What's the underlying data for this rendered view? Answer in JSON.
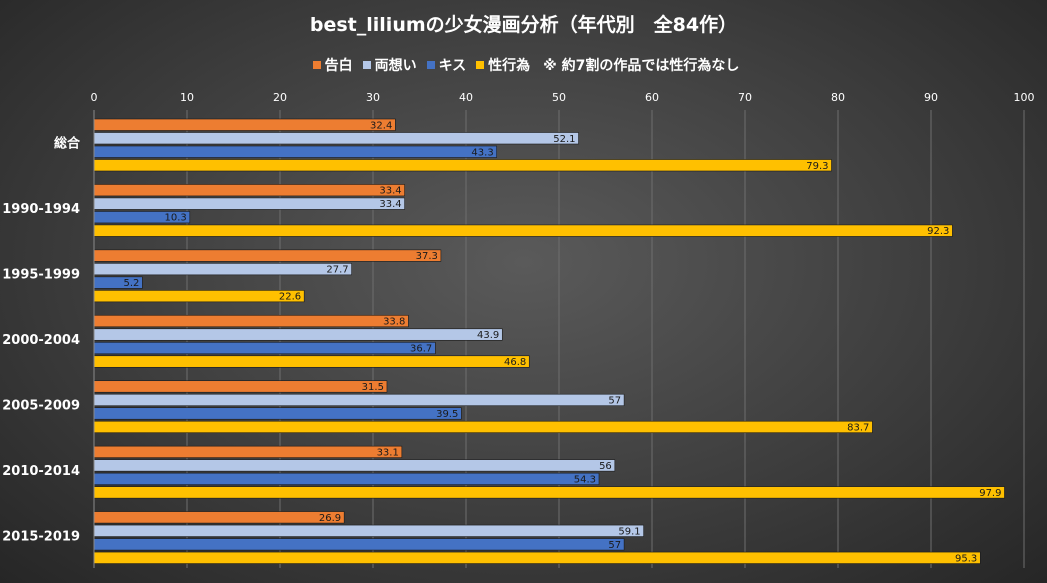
{
  "chart_data": {
    "type": "bar",
    "orientation": "horizontal",
    "title": "best_liliumの少女漫画分析（年代別　全84作）",
    "note": "※ 約7割の作品では性行為なし",
    "categories": [
      "総合",
      "1990-1994",
      "1995-1999",
      "2000-2004",
      "2005-2009",
      "2010-2014",
      "2015-2019"
    ],
    "series": [
      {
        "name": "告白",
        "color": "#ED7D31",
        "values": [
          32.4,
          33.4,
          37.3,
          33.8,
          31.5,
          33.1,
          26.9
        ]
      },
      {
        "name": "両想い",
        "color": "#B4C7E7",
        "values": [
          52.1,
          33.4,
          27.7,
          43.9,
          57,
          56,
          59.1
        ]
      },
      {
        "name": "キス",
        "color": "#4472C4",
        "values": [
          43.3,
          10.3,
          5.2,
          36.7,
          39.5,
          54.3,
          57
        ]
      },
      {
        "name": "性行為",
        "color": "#FFC000",
        "values": [
          79.3,
          92.3,
          22.6,
          46.8,
          83.7,
          97.9,
          95.3
        ]
      }
    ],
    "xlim": [
      0,
      100
    ],
    "xticks": [
      0,
      10,
      20,
      30,
      40,
      50,
      60,
      70,
      80,
      90,
      100
    ],
    "axis_position": "top",
    "grid": true,
    "legend_position": "top",
    "data_labels": true
  }
}
